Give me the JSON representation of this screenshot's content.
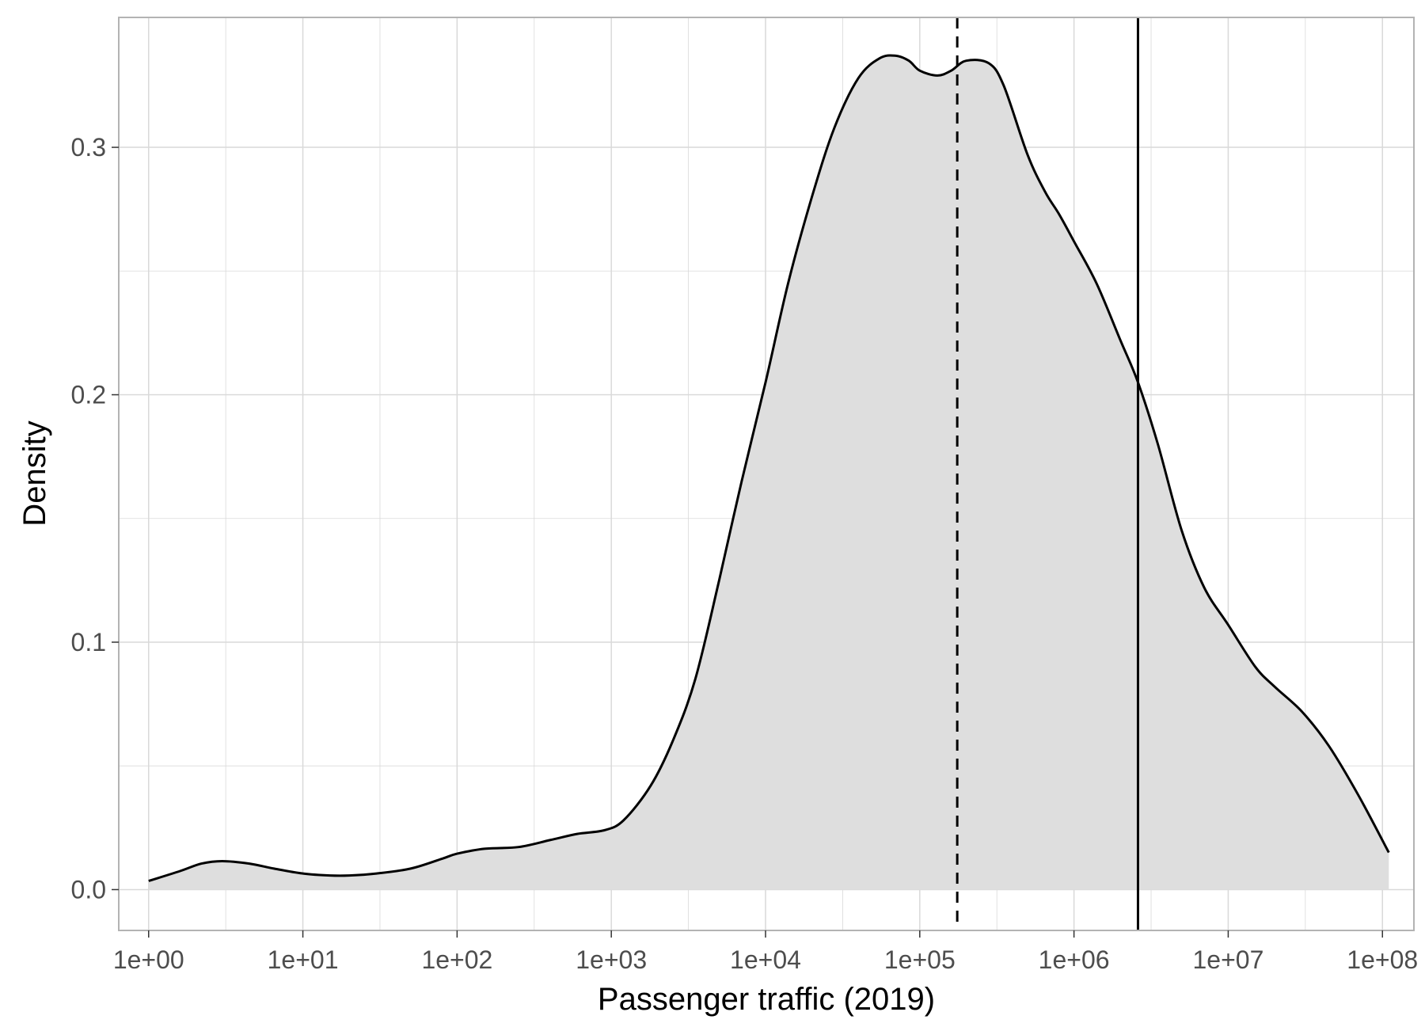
{
  "chart_data": {
    "type": "area",
    "title": "",
    "xlabel": "Passenger traffic (2019)",
    "ylabel": "Density",
    "x_scale": "log10",
    "xlim": [
      0.64,
      160000000
    ],
    "ylim": [
      -0.0165,
      0.3525
    ],
    "x_ticks": [
      1,
      10,
      100,
      1000,
      10000,
      100000,
      1000000,
      10000000,
      100000000
    ],
    "x_tick_labels": [
      "1e+00",
      "1e+01",
      "1e+02",
      "1e+03",
      "1e+04",
      "1e+05",
      "1e+06",
      "1e+07",
      "1e+08"
    ],
    "y_ticks": [
      0.0,
      0.1,
      0.2,
      0.3
    ],
    "y_tick_labels": [
      "0.0",
      "0.1",
      "0.2",
      "0.3"
    ],
    "grid": true,
    "legend": "none",
    "colors": {
      "fill": "#dedede",
      "line": "#000000",
      "grid": "#d9d9d9",
      "border": "#b3b3b3"
    },
    "series": [
      {
        "x": [
          1,
          1.6,
          2.2,
          3,
          4.5,
          6.5,
          10,
          15,
          20,
          30,
          50,
          80,
          100,
          150,
          250,
          400,
          600,
          900,
          1200,
          1800,
          2500,
          3500,
          5000,
          7000,
          10000,
          14000,
          20000,
          28000,
          40000,
          55000,
          70000,
          85000,
          100000,
          130000,
          160000,
          200000,
          280000,
          350000,
          500000,
          650000,
          800000,
          1000000,
          1400000,
          2000000,
          2600000,
          3500000,
          5000000,
          7000000,
          10000000,
          15000000,
          20000000,
          30000000,
          45000000,
          70000000,
          110000000
        ],
        "y": [
          0.0035,
          0.0075,
          0.0105,
          0.0115,
          0.0105,
          0.0085,
          0.0065,
          0.0057,
          0.0057,
          0.0065,
          0.0085,
          0.0125,
          0.0145,
          0.0165,
          0.0172,
          0.02,
          0.0225,
          0.024,
          0.028,
          0.042,
          0.06,
          0.085,
          0.125,
          0.165,
          0.205,
          0.245,
          0.28,
          0.308,
          0.328,
          0.336,
          0.337,
          0.335,
          0.331,
          0.329,
          0.331,
          0.335,
          0.334,
          0.325,
          0.297,
          0.282,
          0.273,
          0.262,
          0.245,
          0.222,
          0.205,
          0.18,
          0.145,
          0.122,
          0.107,
          0.09,
          0.082,
          0.072,
          0.058,
          0.038,
          0.015
        ]
      }
    ],
    "reference_lines": [
      {
        "x": 175000,
        "style": "dashed"
      },
      {
        "x": 2600000,
        "style": "solid"
      }
    ]
  }
}
